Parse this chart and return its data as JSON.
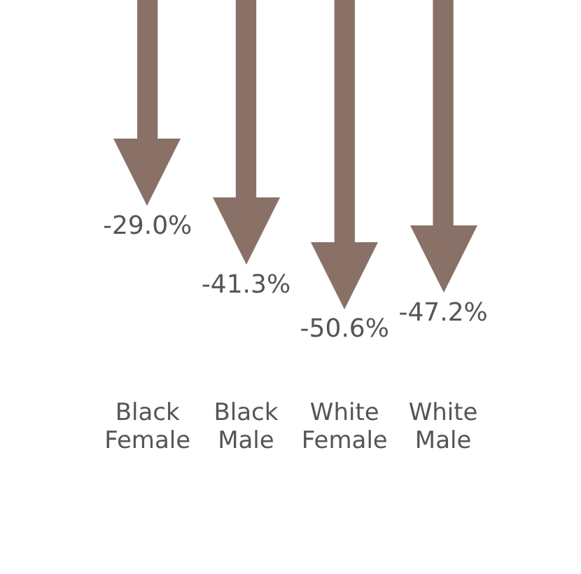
{
  "chart_data": {
    "type": "bar",
    "categories": [
      "Black Female",
      "Black Male",
      "White Female",
      "White Male"
    ],
    "values": [
      -29.0,
      -41.3,
      -50.6,
      -47.2
    ],
    "value_labels": [
      "-29.0%",
      "-41.3%",
      "-50.6%",
      "-47.2%"
    ],
    "color": "#8a7168"
  }
}
